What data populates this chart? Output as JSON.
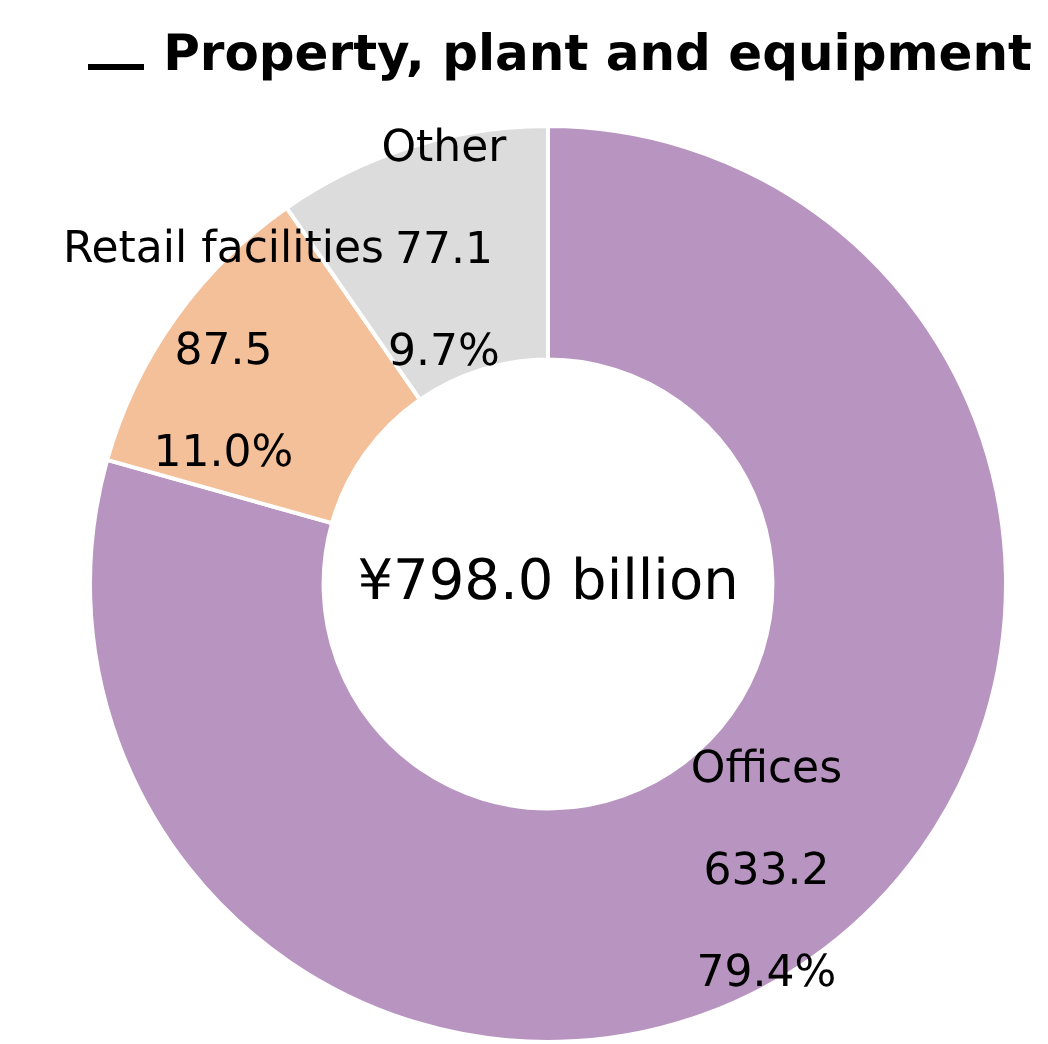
{
  "chart_data": {
    "type": "donut",
    "title": "Property, plant and equipment",
    "categories": [
      "Offices",
      "Retail facilities",
      "Other"
    ],
    "values": [
      633.2,
      87.5,
      77.1
    ],
    "colors": [
      "#b895c0",
      "#f4c09a",
      "#dcdcdc"
    ],
    "value_labels": [
      "633.2\n79.4%",
      "87.5\n11.0%",
      "77.1\n9.7%"
    ],
    "annotations": [
      "¥798.0 billion"
    ],
    "legend": false
  }
}
